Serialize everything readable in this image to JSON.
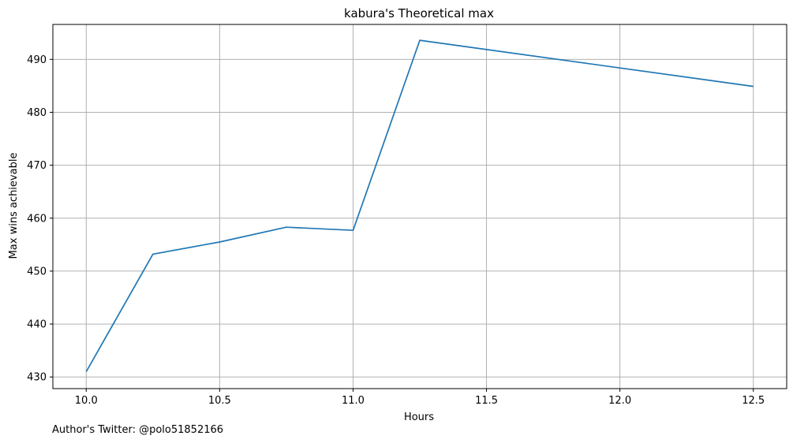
{
  "chart_data": {
    "type": "line",
    "title": "kabura's Theoretical max",
    "xlabel": "Hours",
    "ylabel": "Max wins achievable",
    "xlim": [
      9.875,
      12.625
    ],
    "ylim": [
      427.8,
      496.6
    ],
    "xticks": [
      10.0,
      10.5,
      11.0,
      11.5,
      12.0,
      12.5
    ],
    "xtick_labels": [
      "10.0",
      "10.5",
      "11.0",
      "11.5",
      "12.0",
      "12.5"
    ],
    "yticks": [
      430,
      440,
      450,
      460,
      470,
      480,
      490
    ],
    "ytick_labels": [
      "430",
      "440",
      "450",
      "460",
      "470",
      "480",
      "490"
    ],
    "grid": true,
    "series": [
      {
        "x": [
          10.0,
          10.25,
          10.5,
          10.75,
          11.0,
          11.25,
          12.5
        ],
        "y": [
          431.0,
          453.2,
          455.5,
          458.3,
          457.7,
          493.6,
          484.9
        ],
        "color": "#1f77b4"
      }
    ]
  },
  "footer": {
    "note": "Author's Twitter: @polo51852166"
  }
}
